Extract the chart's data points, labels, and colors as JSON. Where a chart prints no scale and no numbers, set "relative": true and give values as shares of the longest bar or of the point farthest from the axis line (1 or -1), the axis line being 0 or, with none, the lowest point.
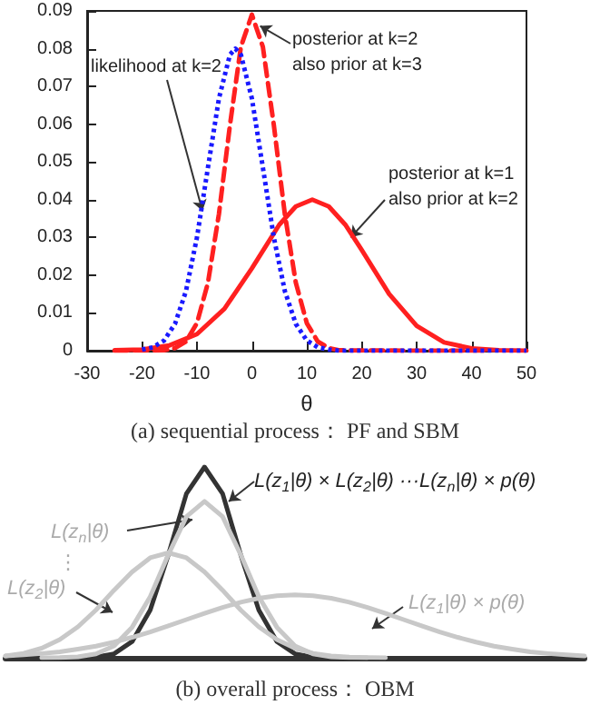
{
  "chart_data": [
    {
      "type": "line",
      "title": "(a) sequential process： PF and SBM",
      "xlabel": "θ",
      "xlim": [
        -30,
        50
      ],
      "xticks": [
        -30,
        -20,
        -10,
        0,
        10,
        20,
        30,
        40,
        50
      ],
      "ylim": [
        0,
        0.09
      ],
      "yticks": [
        0,
        0.01,
        0.02,
        0.03,
        0.04,
        0.05,
        0.06,
        0.07,
        0.08,
        0.09
      ],
      "marker": "none",
      "series": [
        {
          "color": "#1a1aff",
          "line_style": "dotted",
          "x": [
            -20,
            -18,
            -16,
            -14,
            -12,
            -10,
            -8,
            -6,
            -4,
            -3,
            -2,
            0,
            2,
            4,
            6,
            8,
            10,
            12,
            14,
            16,
            30,
            50
          ],
          "values": [
            0.0003,
            0.0009,
            0.0027,
            0.0071,
            0.0158,
            0.03,
            0.0485,
            0.0668,
            0.0784,
            0.08,
            0.0784,
            0.0668,
            0.0485,
            0.03,
            0.0158,
            0.0071,
            0.0027,
            0.0009,
            0.0003,
            0,
            0,
            0
          ]
        },
        {
          "color": "#ff2020",
          "line_style": "dashed",
          "x": [
            -25,
            -16,
            -14,
            -12,
            -10,
            -8,
            -6,
            -4,
            -2,
            0,
            2,
            4,
            6,
            8,
            10,
            12,
            14,
            16,
            30,
            43
          ],
          "values": [
            0,
            0.0001,
            0.0007,
            0.0024,
            0.0073,
            0.018,
            0.0362,
            0.0597,
            0.0805,
            0.089,
            0.0805,
            0.0597,
            0.0362,
            0.018,
            0.0073,
            0.0024,
            0.0007,
            0.0001,
            0,
            0
          ]
        },
        {
          "color": "#ff2020",
          "line_style": "solid",
          "x": [
            -25,
            -20,
            -15,
            -10,
            -5,
            0,
            5,
            8,
            11,
            14,
            17,
            20,
            25,
            30,
            35,
            40,
            45,
            50
          ],
          "values": [
            0.0001,
            0.0003,
            0.0014,
            0.0044,
            0.0111,
            0.0218,
            0.0334,
            0.0382,
            0.04,
            0.0382,
            0.0334,
            0.0267,
            0.015,
            0.0066,
            0.0022,
            0.0006,
            0.0001,
            0
          ]
        }
      ],
      "annotations": [
        {
          "text": "likelihood at k=2",
          "x": -9,
          "y": 0.037
        },
        {
          "text": "posterior at k=2\nalso prior at k=3",
          "x": 1.5,
          "y": 0.086
        },
        {
          "text": "posterior at k=1\nalso prior at k=2",
          "x": 18,
          "y": 0.03
        }
      ]
    },
    {
      "type": "line",
      "title": "(b) overall process： OBM",
      "relative": true,
      "marker": "none",
      "line_style": "solid",
      "categories": [
        null,
        null,
        null,
        null,
        null,
        null,
        null,
        null,
        null,
        null,
        null,
        null,
        null,
        null,
        null,
        null,
        null,
        null,
        null,
        null,
        null,
        null,
        null,
        null,
        null,
        null,
        null,
        null,
        null,
        null,
        null,
        null,
        null
      ],
      "series": [
        {
          "color": "#c8c8c8",
          "values": [
            null,
            null,
            0,
            0.001,
            0.005,
            0.02,
            0.062,
            0.16,
            0.32,
            0.54,
            0.74,
            0.82,
            0.74,
            0.54,
            0.32,
            0.16,
            0.062,
            0.02,
            0.005,
            0.001,
            0,
            null,
            null,
            null,
            null,
            null,
            null,
            null,
            null,
            null,
            null,
            null,
            null
          ]
        },
        {
          "color": "#c8c8c8",
          "values": [
            0.01,
            0.023,
            0.05,
            0.095,
            0.162,
            0.25,
            0.354,
            0.45,
            0.524,
            0.55,
            0.524,
            0.45,
            0.354,
            0.25,
            0.162,
            0.095,
            0.05,
            0.023,
            0.01,
            0.004,
            0.0015,
            0,
            null,
            null,
            null,
            null,
            null,
            null,
            null,
            null,
            null,
            null,
            null
          ]
        },
        {
          "color": "#c8c8c8",
          "values": [
            0.009,
            0.015,
            0.022,
            0.031,
            0.045,
            0.061,
            0.082,
            0.107,
            0.135,
            0.167,
            0.2,
            0.233,
            0.264,
            0.291,
            0.312,
            0.325,
            0.33,
            0.325,
            0.312,
            0.291,
            0.264,
            0.233,
            0.2,
            0.167,
            0.135,
            0.107,
            0.082,
            0.061,
            0.045,
            0.031,
            0.022,
            0.015,
            0.009
          ]
        },
        {
          "color": "#333333",
          "values": [
            null,
            null,
            null,
            null,
            0,
            0.004,
            0.021,
            0.085,
            0.25,
            0.54,
            0.86,
            1,
            0.86,
            0.54,
            0.25,
            0.085,
            0.021,
            0.004,
            0,
            null,
            null,
            null,
            null,
            null,
            null,
            null,
            null,
            null,
            null,
            null,
            null,
            null,
            null
          ]
        }
      ],
      "annotations": [
        "L(z$_{1}$|θ) × L(z$_{2}$|θ) ···L(z$_{n}$|θ) × p(θ)",
        "L(z$_{n}$|θ)",
        "⋮",
        "L(z$_{2}$|θ)",
        "L(z$_{1}$|θ) × p(θ)"
      ]
    }
  ]
}
